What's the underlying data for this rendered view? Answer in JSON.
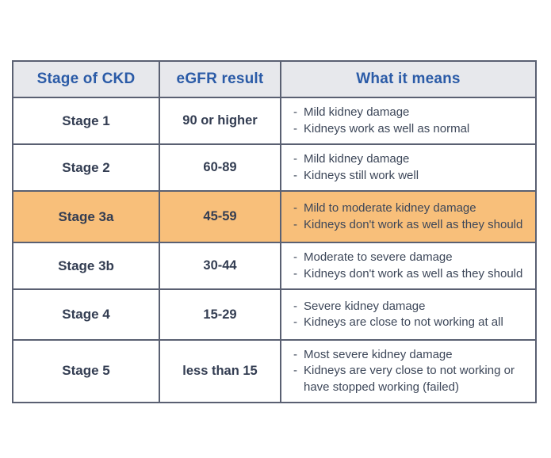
{
  "page": {
    "background": "#ffffff"
  },
  "table": {
    "headers": [
      "Stage of CKD",
      "eGFR result",
      "What it means"
    ],
    "bullet": "-",
    "colors": {
      "header_bg": "#e7e8ec",
      "header_text": "#2b5ba7",
      "border": "#5a6072",
      "body_text": "#37415a",
      "highlight_row_bg": "#f8bf7a"
    },
    "rows": [
      {
        "stage": "Stage 1",
        "egfr": "90 or higher",
        "means": [
          "Mild kidney damage",
          "Kidneys work as well as normal"
        ],
        "highlighted": false
      },
      {
        "stage": "Stage 2",
        "egfr": "60-89",
        "means": [
          "Mild kidney damage",
          "Kidneys still work well"
        ],
        "highlighted": false
      },
      {
        "stage": "Stage 3a",
        "egfr": "45-59",
        "means": [
          "Mild to moderate kidney damage",
          "Kidneys don't work as well as they should"
        ],
        "highlighted": true
      },
      {
        "stage": "Stage 3b",
        "egfr": "30-44",
        "means": [
          "Moderate to severe damage",
          "Kidneys don't work as well as they should"
        ],
        "highlighted": false
      },
      {
        "stage": "Stage 4",
        "egfr": "15-29",
        "means": [
          "Severe kidney damage",
          "Kidneys are close to not working at all"
        ],
        "highlighted": false
      },
      {
        "stage": "Stage 5",
        "egfr": "less than 15",
        "means": [
          "Most severe kidney damage",
          "Kidneys are very close to not working or have stopped working (failed)"
        ],
        "highlighted": false
      }
    ]
  }
}
